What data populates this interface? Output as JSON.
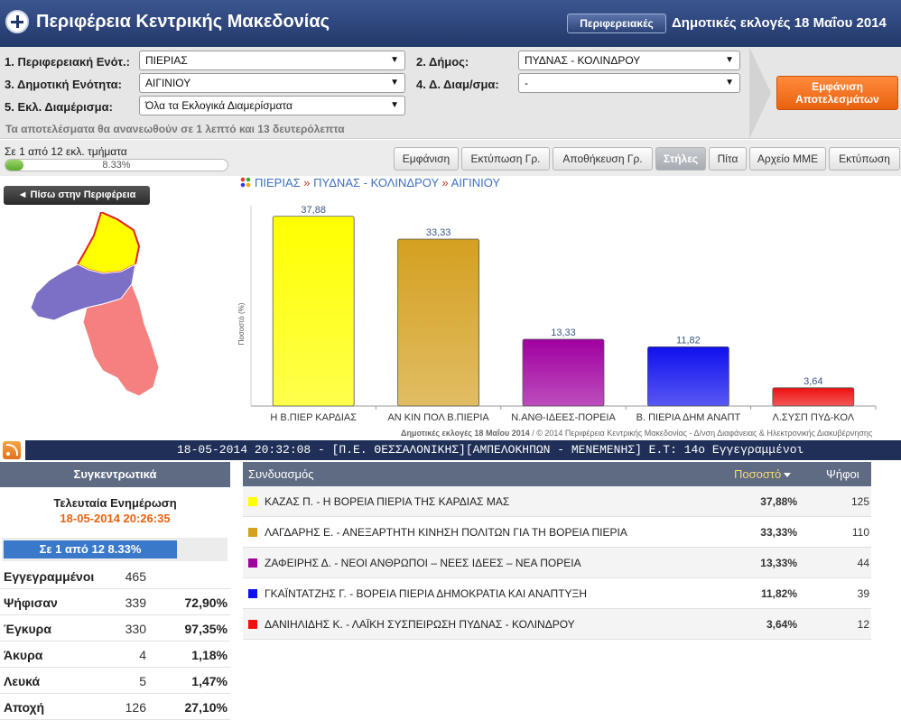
{
  "header": {
    "title": "Περιφέρεια Κεντρικής Μακεδονίας",
    "regional_button": "Περιφερειακές",
    "election_title": "Δημοτικές εκλογές 18 Μαΐου 2014"
  },
  "filters": {
    "label_1": "1. Περιφερειακή Ενότ.:",
    "value_1": "ΠΙΕΡΙΑΣ",
    "label_2": "2. Δήμος:",
    "value_2": "ΠΥΔΝΑΣ - ΚΟΛΙΝΔΡΟΥ",
    "label_3": "3. Δημοτική Ενότητα:",
    "value_3": "ΑΙΓΙΝΙΟΥ",
    "label_4": "4. Δ. Διαμ/σμα:",
    "value_4": "-",
    "label_5": "5. Εκλ. Διαμέρισμα:",
    "value_5": "Όλα τα Εκλογικά Διαμερίσματα",
    "refresh_note": "Τα αποτελέσματα θα ανανεωθούν σε 1 λεπτό και 13 δευτερόλεπτα",
    "show_results": "Εμφάνιση Αποτελεσμάτων",
    "arrow_glyph": "▼"
  },
  "progress": {
    "label": "Σε 1 από 12 εκλ. τμήματα",
    "percent_text": "8.33%",
    "fraction": 0.0833
  },
  "toolbar": {
    "show": "Εμφάνιση",
    "print_chart": "Εκτύπωση Γρ.",
    "save_chart": "Αποθήκευση Γρ.",
    "columns": "Στήλες",
    "pie": "Πίτα",
    "media_file": "Αρχείο ΜΜΕ",
    "print": "Εκτύπωση"
  },
  "map": {
    "back_button": "◄ Πίσω στην Περιφέρεια"
  },
  "breadcrumb": {
    "level_1": "ΠΙΕΡΙΑΣ",
    "level_2": "ΠΥΔΝΑΣ - ΚΟΛΙΝΔΡΟΥ",
    "level_3": "ΑΙΓΙΝΙΟΥ",
    "separator": "»"
  },
  "chart_data": {
    "type": "bar",
    "categories": [
      "Η Β.ΠΙΕΡ ΚΑΡΔΙΑΣ",
      "ΑΝ ΚΙΝ ΠΟΛ Β.ΠΙΕΡΙΑ",
      "Ν.ΑΝΘ-ΙΔΕΕΣ-ΠΟΡΕΙΑ",
      "Β. ΠΙΕΡΙΑ ΔΗΜ ΑΝΑΠΤ",
      "Λ.ΣΥΣΠ ΠΥΔ-ΚΟΛ"
    ],
    "values": [
      37.88,
      33.33,
      13.33,
      11.82,
      3.64
    ],
    "value_labels": [
      "37,88",
      "33,33",
      "13,33",
      "11,82",
      "3,64"
    ],
    "colors": [
      "#ffff00",
      "#d4a020",
      "#a000a0",
      "#1010ee",
      "#ee1010"
    ],
    "ylabel": "Ποσοστό (%)",
    "ylim": [
      0,
      40
    ]
  },
  "chart_footer": {
    "bold": "Δημοτικές εκλογές 18 Μαΐου 2014",
    "rest": " / © 2014 Περιφέρεια Κεντρικής Μακεδονίας - Δ/νση Διαφάνειας & Ηλεκτρονικής Διακυβέρνησης"
  },
  "ticker": {
    "text": "18-05-2014 20:32:08 - [Π.Ε. ΘΕΣΣΑΛΟΝΙΚΗΣ][ΑΜΠΕΛΟΚΗΠΩΝ - ΜΕΝΕΜΕΝΗΣ]  Ε.Τ: 14ο  Εγγεγραμμένοι"
  },
  "summary": {
    "title": "Συγκεντρωτικά",
    "last_update_label": "Τελευταία Ενημέρωση",
    "last_update": "18-05-2014 20:26:35",
    "count": "Σε 1 από  12   8.33%",
    "stats": [
      {
        "label": "Εγγεγραμμένοι",
        "num": "465",
        "pct": ""
      },
      {
        "label": "Ψήφισαν",
        "num": "339",
        "pct": "72,90%"
      },
      {
        "label": "Έγκυρα",
        "num": "330",
        "pct": "97,35%"
      },
      {
        "label": "Άκυρα",
        "num": "4",
        "pct": "1,18%"
      },
      {
        "label": "Λευκά",
        "num": "5",
        "pct": "1,47%"
      },
      {
        "label": "Αποχή",
        "num": "126",
        "pct": "27,10%"
      }
    ]
  },
  "results": {
    "col_name": "Συνδυασμός",
    "col_pct": "Ποσοστό",
    "col_votes": "Ψήφοι",
    "rows": [
      {
        "name": "ΚΑΖΑΣ Π. - Η ΒΟΡΕΙΑ ΠΙΕΡΙΑ ΤΗΣ ΚΑΡΔΙΑΣ ΜΑΣ",
        "pct": "37,88%",
        "votes": "125",
        "color": "#ffff00"
      },
      {
        "name": "ΛΑΓΔΑΡΗΣ Ε. - ΑΝΕΞΑΡΤΗΤΗ ΚΙΝΗΣΗ ΠΟΛΙΤΩΝ ΓΙΑ ΤΗ ΒΟΡΕΙΑ ΠΙΕΡΙΑ",
        "pct": "33,33%",
        "votes": "110",
        "color": "#d4a020"
      },
      {
        "name": "ΖΑΦΕΙΡΗΣ Δ. - ΝΕΟΙ ΑΝΘΡΩΠΟΙ – ΝΕΕΣ ΙΔΕΕΣ – ΝΕΑ ΠΟΡΕΙΑ",
        "pct": "13,33%",
        "votes": "44",
        "color": "#a000a0"
      },
      {
        "name": "ΓΚΑΪΝΤΑΤΖΗΣ Γ. - ΒΟΡΕΙΑ ΠΙΕΡΙΑ ΔΗΜΟΚΡΑΤΙΑ ΚΑΙ ΑΝΑΠΤΥΞΗ",
        "pct": "11,82%",
        "votes": "39",
        "color": "#1010ee"
      },
      {
        "name": "ΔΑΝΙΗΛΙΔΗΣ Κ. - ΛΑΪΚΗ ΣΥΣΠΕΙΡΩΣΗ ΠΥΔΝΑΣ - ΚΟΛΙΝΔΡΟΥ",
        "pct": "3,64%",
        "votes": "12",
        "color": "#ee1010"
      }
    ]
  }
}
